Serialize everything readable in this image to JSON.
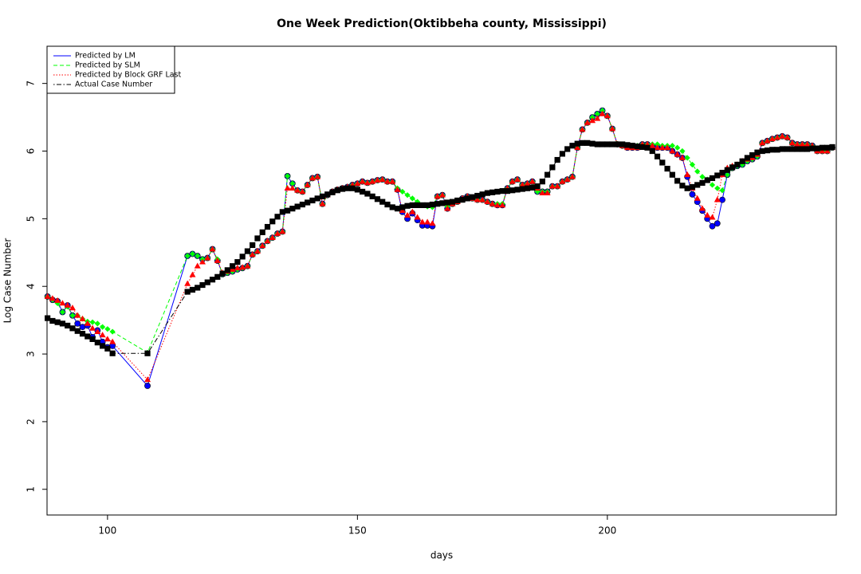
{
  "chart_data": {
    "type": "line",
    "title": "One Week Prediction(Oktibbeha county, Mississippi)",
    "x_label": "days",
    "y_label": "Log Case Number",
    "xlim": [
      87.9,
      245.8
    ],
    "ylim": [
      0.62,
      7.55
    ],
    "xticks": [
      100,
      150,
      200
    ],
    "yticks": [
      1,
      2,
      3,
      4,
      5,
      6,
      7
    ],
    "legend_position": "top-left",
    "x": [
      88,
      89,
      90,
      91,
      92,
      93,
      94,
      95,
      96,
      97,
      98,
      99,
      100,
      101,
      108,
      116,
      117,
      118,
      119,
      120,
      121,
      122,
      123,
      124,
      125,
      126,
      127,
      128,
      129,
      130,
      131,
      132,
      133,
      134,
      135,
      136,
      137,
      138,
      139,
      140,
      141,
      142,
      143,
      144,
      145,
      146,
      147,
      148,
      149,
      150,
      151,
      152,
      153,
      154,
      155,
      156,
      157,
      158,
      159,
      160,
      161,
      162,
      163,
      164,
      165,
      166,
      167,
      168,
      169,
      170,
      171,
      172,
      173,
      174,
      175,
      176,
      177,
      178,
      179,
      180,
      181,
      182,
      183,
      184,
      185,
      186,
      187,
      188,
      189,
      190,
      191,
      192,
      193,
      194,
      195,
      196,
      197,
      198,
      199,
      200,
      201,
      202,
      203,
      204,
      205,
      206,
      207,
      208,
      209,
      210,
      211,
      212,
      213,
      214,
      215,
      216,
      217,
      218,
      219,
      220,
      221,
      222,
      223,
      224,
      225,
      226,
      227,
      228,
      229,
      230,
      231,
      232,
      233,
      234,
      235,
      236,
      237,
      238,
      239,
      240,
      241,
      242,
      243,
      244,
      245
    ],
    "series": [
      {
        "name": "Predicted by LM",
        "color": "#0000ff",
        "line_style": "solid",
        "marker": "circle",
        "values": [
          3.85,
          3.8,
          3.78,
          3.62,
          3.72,
          3.57,
          3.45,
          3.4,
          3.42,
          3.25,
          3.35,
          3.18,
          3.1,
          3.12,
          2.53,
          4.45,
          4.48,
          4.45,
          4.4,
          4.42,
          4.55,
          4.38,
          4.18,
          4.2,
          4.22,
          4.25,
          4.27,
          4.3,
          4.47,
          4.52,
          4.6,
          4.67,
          4.72,
          4.78,
          4.81,
          5.63,
          5.52,
          5.42,
          5.4,
          5.5,
          5.6,
          5.62,
          5.22,
          5.35,
          5.4,
          5.43,
          5.45,
          5.47,
          5.5,
          5.52,
          5.55,
          5.53,
          5.55,
          5.57,
          5.58,
          5.55,
          5.55,
          5.43,
          5.1,
          5.0,
          5.08,
          4.98,
          4.9,
          4.9,
          4.89,
          5.33,
          5.35,
          5.15,
          5.22,
          5.25,
          5.3,
          5.33,
          5.3,
          5.28,
          5.28,
          5.25,
          5.22,
          5.2,
          5.2,
          5.45,
          5.55,
          5.58,
          5.5,
          5.52,
          5.55,
          5.4,
          5.4,
          5.4,
          5.48,
          5.48,
          5.55,
          5.58,
          5.62,
          6.05,
          6.32,
          6.42,
          6.5,
          6.55,
          6.6,
          6.52,
          6.33,
          6.1,
          6.08,
          6.05,
          6.05,
          6.05,
          6.1,
          6.1,
          6.08,
          6.05,
          6.05,
          6.05,
          6.0,
          5.95,
          5.9,
          5.62,
          5.36,
          5.25,
          5.12,
          5.0,
          4.89,
          4.93,
          5.28,
          5.65,
          5.75,
          5.78,
          5.8,
          5.85,
          5.88,
          5.92,
          6.12,
          6.15,
          6.18,
          6.2,
          6.22,
          6.2,
          6.12,
          6.1,
          6.1,
          6.1,
          6.08,
          6.0,
          6.0,
          6.0,
          6.05
        ]
      },
      {
        "name": "Predicted by SLM",
        "color": "#00ff00",
        "line_style": "dashed",
        "marker": "diamond",
        "values": [
          3.85,
          3.8,
          3.75,
          3.62,
          3.7,
          3.57,
          3.57,
          3.52,
          3.48,
          3.47,
          3.45,
          3.4,
          3.37,
          3.33,
          3.02,
          4.45,
          4.48,
          4.45,
          4.4,
          4.42,
          4.55,
          4.4,
          4.18,
          4.2,
          4.22,
          4.25,
          4.27,
          4.3,
          4.47,
          4.52,
          4.6,
          4.67,
          4.72,
          4.78,
          4.81,
          5.63,
          5.52,
          5.42,
          5.4,
          5.5,
          5.6,
          5.62,
          5.22,
          5.35,
          5.4,
          5.43,
          5.45,
          5.47,
          5.5,
          5.52,
          5.55,
          5.53,
          5.55,
          5.57,
          5.58,
          5.55,
          5.55,
          5.45,
          5.4,
          5.35,
          5.3,
          5.25,
          5.2,
          5.18,
          5.17,
          5.33,
          5.35,
          5.18,
          5.22,
          5.25,
          5.3,
          5.33,
          5.3,
          5.28,
          5.28,
          5.25,
          5.22,
          5.22,
          5.22,
          5.45,
          5.55,
          5.58,
          5.5,
          5.52,
          5.55,
          5.4,
          5.4,
          5.4,
          5.48,
          5.48,
          5.55,
          5.58,
          5.62,
          6.05,
          6.32,
          6.42,
          6.5,
          6.55,
          6.6,
          6.52,
          6.33,
          6.1,
          6.08,
          6.08,
          6.08,
          6.08,
          6.1,
          6.1,
          6.1,
          6.1,
          6.08,
          6.08,
          6.08,
          6.05,
          6.0,
          5.9,
          5.8,
          5.7,
          5.62,
          5.58,
          5.5,
          5.45,
          5.42,
          5.65,
          5.75,
          5.78,
          5.8,
          5.85,
          5.88,
          5.92,
          6.12,
          6.15,
          6.18,
          6.2,
          6.22,
          6.2,
          6.12,
          6.1,
          6.1,
          6.1,
          6.08,
          6.0,
          6.0,
          6.0,
          6.05
        ]
      },
      {
        "name": "Predicted by Block GRF Last",
        "color": "#ff0000",
        "line_style": "dotted",
        "marker": "triangle",
        "values": [
          3.85,
          3.82,
          3.79,
          3.75,
          3.72,
          3.68,
          3.57,
          3.52,
          3.45,
          3.38,
          3.33,
          3.28,
          3.22,
          3.18,
          2.62,
          4.04,
          4.17,
          4.3,
          4.36,
          4.42,
          4.55,
          4.38,
          4.2,
          4.22,
          4.25,
          4.27,
          4.28,
          4.3,
          4.47,
          4.52,
          4.6,
          4.67,
          4.72,
          4.78,
          4.81,
          5.45,
          5.45,
          5.42,
          5.4,
          5.5,
          5.6,
          5.62,
          5.22,
          5.35,
          5.4,
          5.43,
          5.45,
          5.47,
          5.5,
          5.52,
          5.55,
          5.53,
          5.55,
          5.57,
          5.58,
          5.55,
          5.55,
          5.43,
          5.12,
          5.05,
          5.1,
          5.02,
          4.95,
          4.95,
          4.93,
          5.33,
          5.35,
          5.15,
          5.22,
          5.25,
          5.3,
          5.33,
          5.3,
          5.28,
          5.28,
          5.25,
          5.22,
          5.2,
          5.2,
          5.45,
          5.55,
          5.58,
          5.5,
          5.52,
          5.55,
          5.45,
          5.38,
          5.38,
          5.48,
          5.48,
          5.55,
          5.58,
          5.62,
          6.05,
          6.32,
          6.42,
          6.45,
          6.48,
          6.55,
          6.52,
          6.33,
          6.1,
          6.08,
          6.05,
          6.05,
          6.05,
          6.1,
          6.1,
          6.08,
          6.05,
          6.05,
          6.05,
          6.0,
          5.95,
          5.9,
          5.65,
          5.45,
          5.3,
          5.15,
          5.05,
          5.02,
          5.28,
          5.65,
          5.75,
          5.78,
          5.8,
          5.85,
          5.88,
          5.9,
          5.95,
          6.12,
          6.15,
          6.18,
          6.2,
          6.22,
          6.2,
          6.12,
          6.1,
          6.1,
          6.1,
          6.08,
          6.0,
          6.0,
          6.0,
          6.05
        ]
      },
      {
        "name": "Actual Case Number",
        "color": "#000000",
        "line_style": "dotdash",
        "marker": "square",
        "values": [
          3.53,
          3.49,
          3.47,
          3.45,
          3.42,
          3.38,
          3.34,
          3.3,
          3.26,
          3.22,
          3.17,
          3.12,
          3.08,
          3.01,
          3.01,
          3.92,
          3.95,
          3.98,
          4.02,
          4.06,
          4.1,
          4.14,
          4.19,
          4.24,
          4.3,
          4.36,
          4.44,
          4.52,
          4.61,
          4.71,
          4.8,
          4.88,
          4.96,
          5.03,
          5.1,
          5.12,
          5.15,
          5.18,
          5.21,
          5.24,
          5.27,
          5.3,
          5.33,
          5.36,
          5.39,
          5.42,
          5.44,
          5.45,
          5.45,
          5.43,
          5.4,
          5.37,
          5.33,
          5.29,
          5.25,
          5.21,
          5.17,
          5.15,
          5.17,
          5.19,
          5.2,
          5.2,
          5.2,
          5.2,
          5.21,
          5.22,
          5.23,
          5.24,
          5.25,
          5.27,
          5.28,
          5.3,
          5.32,
          5.34,
          5.36,
          5.38,
          5.39,
          5.4,
          5.41,
          5.41,
          5.42,
          5.43,
          5.44,
          5.45,
          5.46,
          5.48,
          5.55,
          5.65,
          5.76,
          5.87,
          5.96,
          6.03,
          6.08,
          6.11,
          6.12,
          6.12,
          6.11,
          6.1,
          6.1,
          6.1,
          6.1,
          6.1,
          6.1,
          6.09,
          6.08,
          6.07,
          6.06,
          6.05,
          6.0,
          5.92,
          5.83,
          5.74,
          5.65,
          5.56,
          5.49,
          5.45,
          5.47,
          5.5,
          5.53,
          5.57,
          5.6,
          5.64,
          5.68,
          5.72,
          5.76,
          5.8,
          5.85,
          5.9,
          5.94,
          5.98,
          6.0,
          6.01,
          6.02,
          6.02,
          6.03,
          6.03,
          6.03,
          6.03,
          6.03,
          6.03,
          6.04,
          6.04,
          6.05,
          6.05,
          6.06
        ]
      }
    ]
  }
}
